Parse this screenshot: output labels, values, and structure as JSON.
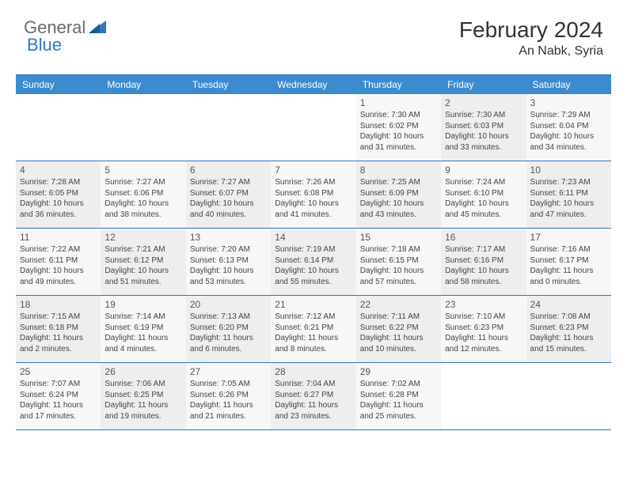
{
  "logo": {
    "text1": "General",
    "text2": "Blue"
  },
  "title": "February 2024",
  "location": "An Nabk, Syria",
  "colors": {
    "header_bg": "#3b8bce",
    "accent_border": "#2b78c5",
    "cell_odd": "#f7f7f7",
    "cell_even": "#eeeeee",
    "text": "#333333",
    "logo_gray": "#6a6a6a",
    "logo_blue": "#2b78c5"
  },
  "day_headers": [
    "Sunday",
    "Monday",
    "Tuesday",
    "Wednesday",
    "Thursday",
    "Friday",
    "Saturday"
  ],
  "weeks": [
    [
      {
        "day": "",
        "lines": []
      },
      {
        "day": "",
        "lines": []
      },
      {
        "day": "",
        "lines": []
      },
      {
        "day": "",
        "lines": []
      },
      {
        "day": "1",
        "lines": [
          "Sunrise: 7:30 AM",
          "Sunset: 6:02 PM",
          "Daylight: 10 hours and 31 minutes."
        ]
      },
      {
        "day": "2",
        "lines": [
          "Sunrise: 7:30 AM",
          "Sunset: 6:03 PM",
          "Daylight: 10 hours and 33 minutes."
        ]
      },
      {
        "day": "3",
        "lines": [
          "Sunrise: 7:29 AM",
          "Sunset: 6:04 PM",
          "Daylight: 10 hours and 34 minutes."
        ]
      }
    ],
    [
      {
        "day": "4",
        "lines": [
          "Sunrise: 7:28 AM",
          "Sunset: 6:05 PM",
          "Daylight: 10 hours and 36 minutes."
        ]
      },
      {
        "day": "5",
        "lines": [
          "Sunrise: 7:27 AM",
          "Sunset: 6:06 PM",
          "Daylight: 10 hours and 38 minutes."
        ]
      },
      {
        "day": "6",
        "lines": [
          "Sunrise: 7:27 AM",
          "Sunset: 6:07 PM",
          "Daylight: 10 hours and 40 minutes."
        ]
      },
      {
        "day": "7",
        "lines": [
          "Sunrise: 7:26 AM",
          "Sunset: 6:08 PM",
          "Daylight: 10 hours and 41 minutes."
        ]
      },
      {
        "day": "8",
        "lines": [
          "Sunrise: 7:25 AM",
          "Sunset: 6:09 PM",
          "Daylight: 10 hours and 43 minutes."
        ]
      },
      {
        "day": "9",
        "lines": [
          "Sunrise: 7:24 AM",
          "Sunset: 6:10 PM",
          "Daylight: 10 hours and 45 minutes."
        ]
      },
      {
        "day": "10",
        "lines": [
          "Sunrise: 7:23 AM",
          "Sunset: 6:11 PM",
          "Daylight: 10 hours and 47 minutes."
        ]
      }
    ],
    [
      {
        "day": "11",
        "lines": [
          "Sunrise: 7:22 AM",
          "Sunset: 6:11 PM",
          "Daylight: 10 hours and 49 minutes."
        ]
      },
      {
        "day": "12",
        "lines": [
          "Sunrise: 7:21 AM",
          "Sunset: 6:12 PM",
          "Daylight: 10 hours and 51 minutes."
        ]
      },
      {
        "day": "13",
        "lines": [
          "Sunrise: 7:20 AM",
          "Sunset: 6:13 PM",
          "Daylight: 10 hours and 53 minutes."
        ]
      },
      {
        "day": "14",
        "lines": [
          "Sunrise: 7:19 AM",
          "Sunset: 6:14 PM",
          "Daylight: 10 hours and 55 minutes."
        ]
      },
      {
        "day": "15",
        "lines": [
          "Sunrise: 7:18 AM",
          "Sunset: 6:15 PM",
          "Daylight: 10 hours and 57 minutes."
        ]
      },
      {
        "day": "16",
        "lines": [
          "Sunrise: 7:17 AM",
          "Sunset: 6:16 PM",
          "Daylight: 10 hours and 58 minutes."
        ]
      },
      {
        "day": "17",
        "lines": [
          "Sunrise: 7:16 AM",
          "Sunset: 6:17 PM",
          "Daylight: 11 hours and 0 minutes."
        ]
      }
    ],
    [
      {
        "day": "18",
        "lines": [
          "Sunrise: 7:15 AM",
          "Sunset: 6:18 PM",
          "Daylight: 11 hours and 2 minutes."
        ]
      },
      {
        "day": "19",
        "lines": [
          "Sunrise: 7:14 AM",
          "Sunset: 6:19 PM",
          "Daylight: 11 hours and 4 minutes."
        ]
      },
      {
        "day": "20",
        "lines": [
          "Sunrise: 7:13 AM",
          "Sunset: 6:20 PM",
          "Daylight: 11 hours and 6 minutes."
        ]
      },
      {
        "day": "21",
        "lines": [
          "Sunrise: 7:12 AM",
          "Sunset: 6:21 PM",
          "Daylight: 11 hours and 8 minutes."
        ]
      },
      {
        "day": "22",
        "lines": [
          "Sunrise: 7:11 AM",
          "Sunset: 6:22 PM",
          "Daylight: 11 hours and 10 minutes."
        ]
      },
      {
        "day": "23",
        "lines": [
          "Sunrise: 7:10 AM",
          "Sunset: 6:23 PM",
          "Daylight: 11 hours and 12 minutes."
        ]
      },
      {
        "day": "24",
        "lines": [
          "Sunrise: 7:08 AM",
          "Sunset: 6:23 PM",
          "Daylight: 11 hours and 15 minutes."
        ]
      }
    ],
    [
      {
        "day": "25",
        "lines": [
          "Sunrise: 7:07 AM",
          "Sunset: 6:24 PM",
          "Daylight: 11 hours and 17 minutes."
        ]
      },
      {
        "day": "26",
        "lines": [
          "Sunrise: 7:06 AM",
          "Sunset: 6:25 PM",
          "Daylight: 11 hours and 19 minutes."
        ]
      },
      {
        "day": "27",
        "lines": [
          "Sunrise: 7:05 AM",
          "Sunset: 6:26 PM",
          "Daylight: 11 hours and 21 minutes."
        ]
      },
      {
        "day": "28",
        "lines": [
          "Sunrise: 7:04 AM",
          "Sunset: 6:27 PM",
          "Daylight: 11 hours and 23 minutes."
        ]
      },
      {
        "day": "29",
        "lines": [
          "Sunrise: 7:02 AM",
          "Sunset: 6:28 PM",
          "Daylight: 11 hours and 25 minutes."
        ]
      },
      {
        "day": "",
        "lines": []
      },
      {
        "day": "",
        "lines": []
      }
    ]
  ]
}
